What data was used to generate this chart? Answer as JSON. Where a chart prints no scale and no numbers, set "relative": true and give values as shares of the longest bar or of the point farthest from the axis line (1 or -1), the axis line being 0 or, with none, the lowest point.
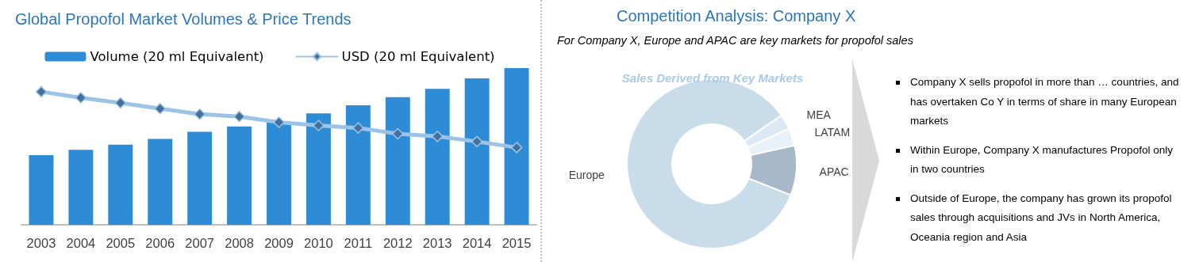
{
  "chart_data": [
    {
      "type": "bar",
      "title": "Global Propofol Market Volumes & Price Trends",
      "relative": true,
      "legend": "top",
      "categories": [
        "2003",
        "2004",
        "2005",
        "2006",
        "2007",
        "2008",
        "2009",
        "2010",
        "2011",
        "2012",
        "2013",
        "2014",
        "2015"
      ],
      "series": [
        {
          "name": "Volume (20 ml Equivalent)",
          "color": "#2e8bd6",
          "values": [
            0.445,
            0.478,
            0.511,
            0.548,
            0.594,
            0.627,
            0.651,
            0.711,
            0.763,
            0.814,
            0.868,
            0.934,
            1
          ]
        },
        {
          "name": "USD (20 ml Equivalent)",
          "type": "line",
          "marker": "diamond",
          "color": "#9cc3e5",
          "values": [
            0.849,
            0.811,
            0.778,
            0.741,
            0.706,
            0.691,
            0.654,
            0.634,
            0.618,
            0.581,
            0.564,
            0.531,
            0.493
          ]
        }
      ]
    },
    {
      "type": "donut",
      "title": "Sales Derived from Key Markets",
      "categories": [
        "Europe",
        "MEA",
        "LATAM",
        "APAC"
      ],
      "values": [
        84.3,
        2.9,
        3.3,
        9.5
      ],
      "colors": [
        "#c9dcea",
        "#dce9f5",
        "#e8f1fa",
        "#a7b8c8"
      ]
    },
    {
      "type": "other",
      "title": "Competition Analysis: Company X",
      "subtitle": "For Company X, Europe and APAC are key markets for propofol sales",
      "annotations": [
        "Company X sells propofol in more than … countries, and has overtaken Co Y in terms of share in many European markets",
        "Within Europe, Company X manufactures Propofol only in two countries",
        "Outside of Europe, the company has grown its propofol sales through acquisitions and JVs in North America, Oceania region and Asia"
      ]
    }
  ]
}
